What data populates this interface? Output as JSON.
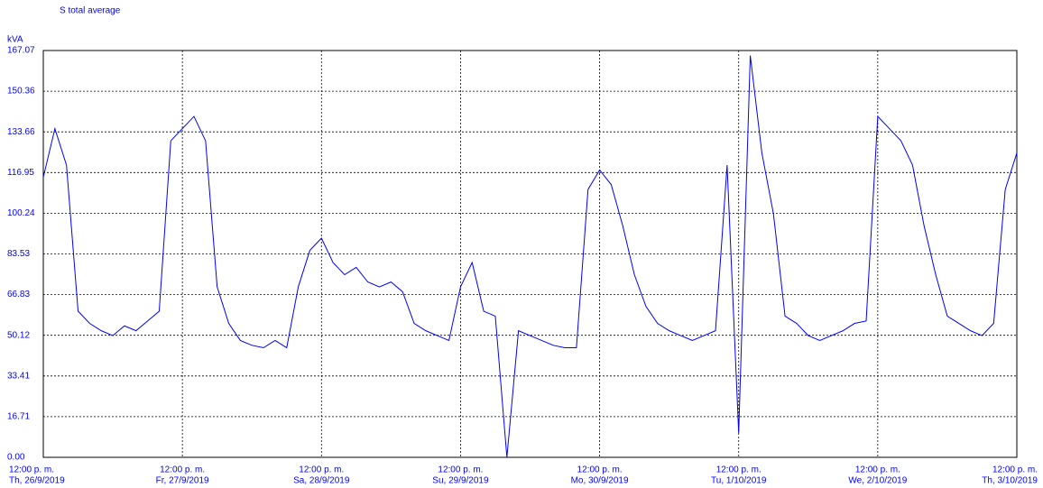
{
  "chart_data": {
    "type": "line",
    "title": "S total average",
    "y_unit": "kVA",
    "x": [
      0,
      2,
      4,
      6,
      8,
      10,
      12,
      14,
      16,
      18,
      20,
      22,
      24,
      26,
      28,
      30,
      32,
      34,
      36,
      38,
      40,
      42,
      44,
      46,
      48,
      50,
      52,
      54,
      56,
      58,
      60,
      62,
      64,
      66,
      68,
      70,
      72,
      74,
      76,
      78,
      80,
      82,
      84,
      86,
      88,
      90,
      92,
      94,
      96,
      98,
      100,
      102,
      104,
      106,
      108,
      110,
      112,
      114,
      116,
      118,
      120,
      122,
      124,
      126,
      128,
      130,
      132,
      134,
      136,
      138,
      140,
      142,
      144,
      146,
      148,
      150,
      152,
      154,
      156,
      158,
      160,
      162,
      164,
      166,
      168
    ],
    "series": [
      {
        "name": "S total average",
        "color": "#0000ff",
        "values": [
          115,
          135,
          120,
          60,
          55,
          52,
          50,
          54,
          52,
          56,
          60,
          130,
          135,
          140,
          130,
          70,
          55,
          48,
          46,
          45,
          48,
          45,
          70,
          85,
          90,
          80,
          75,
          78,
          72,
          70,
          72,
          68,
          55,
          52,
          50,
          48,
          70,
          80,
          60,
          58,
          0,
          52,
          50,
          48,
          46,
          45,
          45,
          110,
          118,
          112,
          95,
          75,
          62,
          55,
          52,
          50,
          48,
          50,
          52,
          120,
          10,
          165,
          125,
          100,
          58,
          55,
          50,
          48,
          50,
          52,
          55,
          56,
          140,
          135,
          130,
          120,
          95,
          75,
          58,
          55,
          52,
          50,
          55,
          110,
          125
        ]
      }
    ],
    "xlim": [
      0,
      168
    ],
    "xticks": [
      {
        "value": 0,
        "label": "12:00 p. m."
      },
      {
        "value": 24,
        "label": "12:00 p. m."
      },
      {
        "value": 48,
        "label": "12:00 p. m."
      },
      {
        "value": 72,
        "label": "12:00 p. m."
      },
      {
        "value": 96,
        "label": "12:00 p. m."
      },
      {
        "value": 120,
        "label": "12:00 p. m."
      },
      {
        "value": 144,
        "label": "12:00 p. m."
      },
      {
        "value": 168,
        "label": "12:00 p. m."
      }
    ],
    "xtick_dates": [
      "Th, 26/9/2019",
      "Fr, 27/9/2019",
      "Sa, 28/9/2019",
      "Su, 29/9/2019",
      "Mo, 30/9/2019",
      "Tu, 1/10/2019",
      "We, 2/10/2019",
      "Th, 3/10/2019"
    ],
    "ylim": [
      0,
      167.07
    ],
    "yticks": [
      {
        "value": 0,
        "label": "0.00"
      },
      16.71,
      33.41,
      50.12,
      66.83,
      83.53,
      100.24,
      116.95,
      133.66,
      150.36,
      167.07
    ],
    "grid": true
  }
}
